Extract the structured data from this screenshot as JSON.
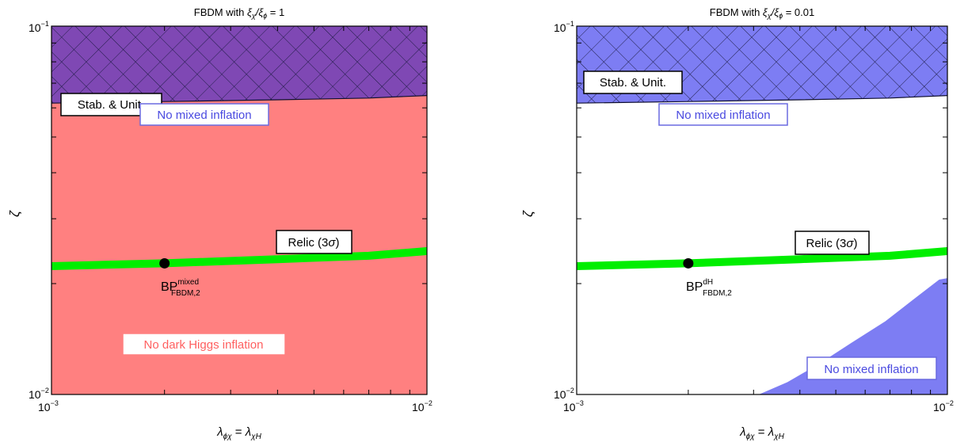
{
  "chart_data": [
    {
      "type": "area",
      "title": {
        "pre": "FBDM with ",
        "xi1": "ξ",
        "sub1": "χ",
        "slash": "/",
        "xi2": "ξ",
        "sub2": "ϕ",
        "post": " = 1"
      },
      "xlabel": {
        "lam": "λ",
        "lsub": "ϕχ",
        "eq": " = ",
        "lam2": "λ",
        "lsub2": "χH"
      },
      "ylabel": "ζ",
      "x_scale": "log",
      "y_scale": "log",
      "xlim": [
        0.001,
        0.01
      ],
      "ylim": [
        0.01,
        0.1
      ],
      "x_ticks": [
        {
          "base": "10",
          "exp": "−3"
        },
        {
          "base": "10",
          "exp": "−2"
        }
      ],
      "y_ticks": [
        {
          "base": "10",
          "exp": "−1"
        },
        {
          "base": "10",
          "exp": "−2"
        }
      ],
      "regions": [
        {
          "name": "No mixed inflation",
          "color": "#7f48b4",
          "boundary_x": [
            0.001,
            0.002,
            0.004,
            0.007,
            0.01
          ],
          "boundary_y": [
            0.0618,
            0.0624,
            0.0631,
            0.0638,
            0.0648
          ],
          "above": true
        },
        {
          "name": "No dark Higgs inflation",
          "color": "#ff8080",
          "from": 0.01,
          "to_boundary": true
        },
        {
          "name": "Stab. & Unit.",
          "hatch": true,
          "boundary_x": [
            0.001,
            0.01
          ],
          "boundary_y": [
            0.0618,
            0.0648
          ],
          "above": true
        }
      ],
      "relic_curve": {
        "name": "Relic (3σ)",
        "color": "#00ee00",
        "x": [
          0.001,
          0.002,
          0.004,
          0.007,
          0.01
        ],
        "y": [
          0.0223,
          0.0227,
          0.0233,
          0.0238,
          0.0245
        ]
      },
      "benchmark": {
        "x": 0.002,
        "y": 0.0227,
        "base": "BP",
        "sup": "mixed",
        "sub": "FBDM,2"
      },
      "labels": {
        "stab": "Stab. & Unit.",
        "nomixed": "No mixed inflation",
        "relic": "Relic (3",
        "sigma": "σ",
        "relic_end": ")",
        "nodark": "No dark Higgs inflation"
      }
    },
    {
      "type": "area",
      "title": {
        "pre": "FBDM with ",
        "xi1": "ξ",
        "sub1": "χ",
        "slash": "/",
        "xi2": "ξ",
        "sub2": "ϕ",
        "post": " = 0.01"
      },
      "xlabel": {
        "lam": "λ",
        "lsub": "ϕχ",
        "eq": " = ",
        "lam2": "λ",
        "lsub2": "χH"
      },
      "ylabel": "ζ",
      "x_scale": "log",
      "y_scale": "log",
      "xlim": [
        0.001,
        0.01
      ],
      "ylim": [
        0.01,
        0.1
      ],
      "x_ticks": [
        {
          "base": "10",
          "exp": "−3"
        },
        {
          "base": "10",
          "exp": "−2"
        }
      ],
      "y_ticks": [
        {
          "base": "10",
          "exp": "−1"
        },
        {
          "base": "10",
          "exp": "−2"
        }
      ],
      "regions": [
        {
          "name": "No mixed inflation",
          "color": "#7d7df3",
          "boundary_x": [
            0.001,
            0.002,
            0.004,
            0.007,
            0.01
          ],
          "boundary_y": [
            0.0618,
            0.0624,
            0.0631,
            0.0638,
            0.0648
          ],
          "above": true
        },
        {
          "name": "No mixed inflation",
          "color": "#7d7df3",
          "stair_x": [
            0.0031,
            0.0037,
            0.0045,
            0.0055,
            0.0068,
            0.0082,
            0.0095,
            0.01
          ],
          "stair_y": [
            0.01,
            0.0108,
            0.0121,
            0.0138,
            0.0158,
            0.0183,
            0.0205,
            0.0207
          ],
          "below": true
        },
        {
          "name": "Stab. & Unit.",
          "hatch": true,
          "boundary_x": [
            0.001,
            0.01
          ],
          "boundary_y": [
            0.0618,
            0.0648
          ],
          "above": true
        }
      ],
      "relic_curve": {
        "name": "Relic (3σ)",
        "color": "#00ee00",
        "x": [
          0.001,
          0.002,
          0.004,
          0.007,
          0.01
        ],
        "y": [
          0.0223,
          0.0227,
          0.0233,
          0.0238,
          0.0245
        ]
      },
      "benchmark": {
        "x": 0.002,
        "y": 0.0227,
        "base": "BP",
        "sup": "dH",
        "sub": "FBDM,2"
      },
      "labels": {
        "stab": "Stab. & Unit.",
        "nomixed": "No mixed inflation",
        "nomixed2": "No mixed inflation",
        "relic": "Relic (3",
        "sigma": "σ",
        "relic_end": ")"
      }
    }
  ]
}
